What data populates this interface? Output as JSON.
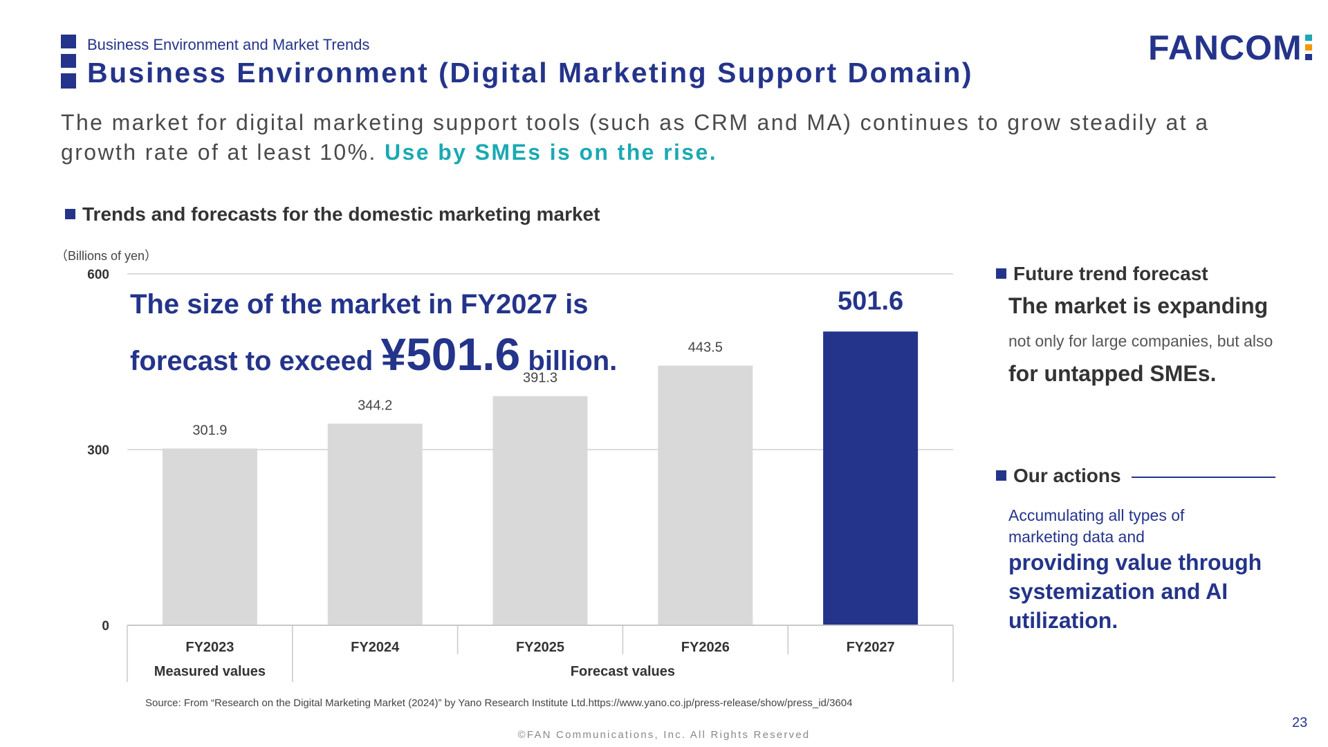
{
  "header": {
    "subtitle": "Business Environment and Market Trends",
    "title": "Business Environment (Digital Marketing Support Domain)",
    "logo_text": "FANCOM"
  },
  "lead": {
    "text": "The market for digital marketing support tools (such as CRM and MA) continues to grow steadily at a growth rate of at least 10%. ",
    "accent": "Use by SMEs is on the rise."
  },
  "section_title": "Trends and forecasts for the domestic marketing market",
  "highlight": {
    "line1": "The size of the market in FY2027 is",
    "line2_pre": "forecast to exceed ",
    "line2_big": "¥501.6",
    "line2_post": " billion."
  },
  "chart_data": {
    "type": "bar",
    "unit_label": "（Billions of yen）",
    "categories": [
      "FY2023",
      "FY2024",
      "FY2025",
      "FY2026",
      "FY2027"
    ],
    "values": [
      301.9,
      344.2,
      391.3,
      443.5,
      501.6
    ],
    "value_labels": [
      "301.9",
      "344.2",
      "391.3",
      "443.5",
      "501.6"
    ],
    "ylim": [
      0,
      600
    ],
    "yticks": [
      0,
      300,
      600
    ],
    "grid": true,
    "highlight_index": 4,
    "groups": [
      {
        "label": "Measured values",
        "from": 0,
        "to": 0
      },
      {
        "label": "Forecast values",
        "from": 1,
        "to": 4
      }
    ],
    "colors": {
      "bar": "#d9d9d9",
      "highlight": "#24348a",
      "grid": "#d0d0d0"
    }
  },
  "right": {
    "forecast_head": "Future trend forecast",
    "forecast_h1": "The market is expanding",
    "forecast_text": "not only for large companies, but also",
    "forecast_h2": "for untapped SMEs.",
    "actions_head": "Our actions",
    "actions_text": "Accumulating all types of marketing data and",
    "actions_h": "providing value through systemization and AI utilization."
  },
  "source": "Source: From “Research on the Digital Marketing Market (2024)” by Yano Research Institute Ltd.https://www.yano.co.jp/press-release/show/press_id/3604",
  "copyright": "©FAN Communications, Inc. All Rights Reserved",
  "page_number": "23"
}
